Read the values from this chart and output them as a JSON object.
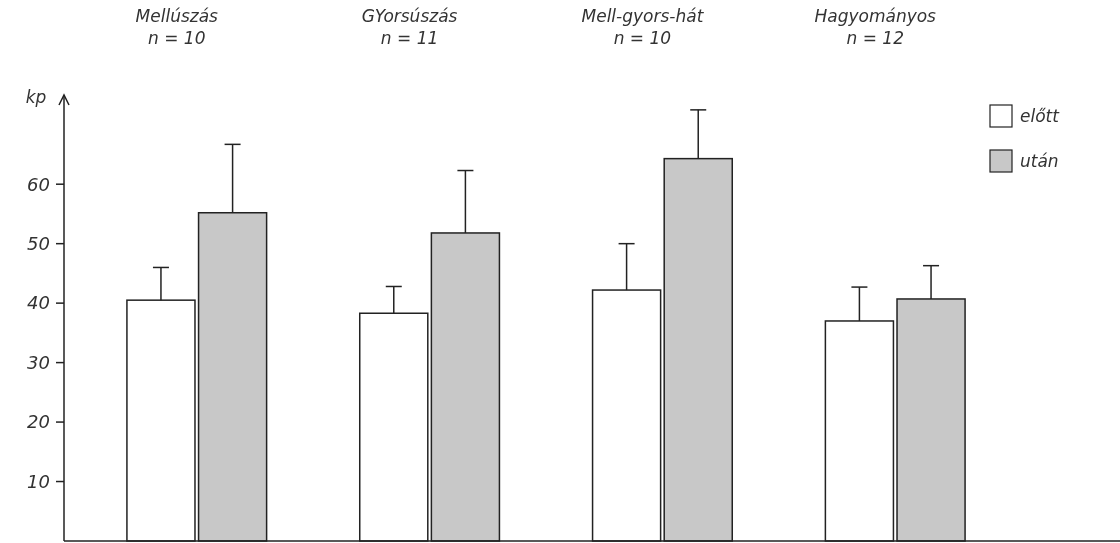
{
  "chart_data": {
    "type": "bar",
    "ylabel": "kp",
    "categories": [
      "Mellúszás\nn = 10",
      "GYorsúszás\nn = 11",
      "Mell-gyors-hát\nn = 10",
      "Hagyományos\nn = 12"
    ],
    "series": [
      {
        "name": "előtt",
        "color": "#ffffff",
        "values": [
          40.5,
          38.3,
          42.2,
          37
        ],
        "errors": [
          [
            40.5,
            46
          ],
          [
            38.3,
            42.8
          ],
          [
            42.2,
            50
          ],
          [
            37,
            42.7
          ]
        ]
      },
      {
        "name": "után",
        "color": "#c8c8c8",
        "values": [
          55.2,
          51.8,
          64.3,
          40.7
        ],
        "errors": [
          [
            55.2,
            66.7
          ],
          [
            51.8,
            62.3
          ],
          [
            64.3,
            72.5
          ],
          [
            40.7,
            46.3
          ]
        ]
      }
    ],
    "ylim": [
      0,
      75
    ],
    "yticks": [
      10,
      20,
      30,
      40,
      50,
      60
    ],
    "grid": false,
    "legend": "top right"
  }
}
